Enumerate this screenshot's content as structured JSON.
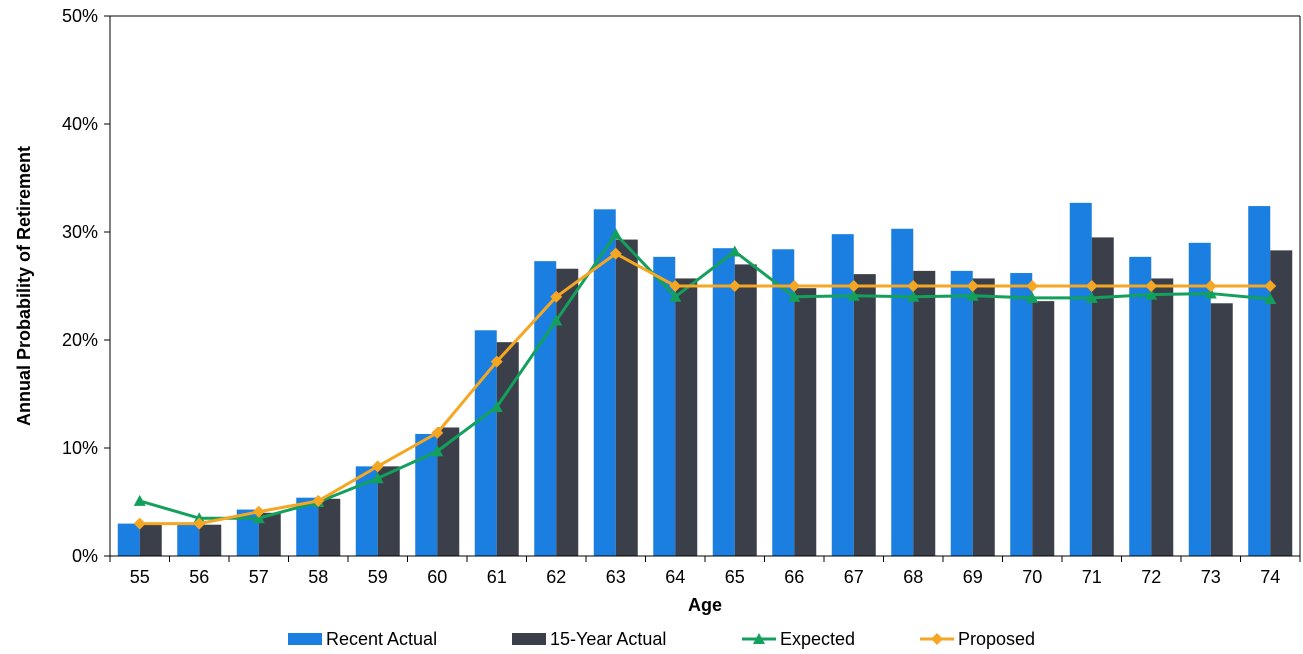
{
  "chart_data": {
    "type": "bar",
    "title": "",
    "xlabel": "Age",
    "ylabel": "Annual Probability of Retirement",
    "ylim": [
      0,
      0.5
    ],
    "yticks": [
      "0%",
      "10%",
      "20%",
      "30%",
      "40%",
      "50%"
    ],
    "categories": [
      "55",
      "56",
      "57",
      "58",
      "59",
      "60",
      "61",
      "62",
      "63",
      "64",
      "65",
      "66",
      "67",
      "68",
      "69",
      "70",
      "71",
      "72",
      "73",
      "74"
    ],
    "grid": false,
    "legend_position": "bottom",
    "series": [
      {
        "name": "Recent Actual",
        "kind": "bar",
        "color": "#1a7fe0",
        "values": [
          0.03,
          0.03,
          0.043,
          0.054,
          0.083,
          0.113,
          0.209,
          0.273,
          0.321,
          0.277,
          0.285,
          0.284,
          0.298,
          0.303,
          0.264,
          0.262,
          0.327,
          0.277,
          0.29,
          0.324
        ]
      },
      {
        "name": "15-Year Actual",
        "kind": "bar",
        "color": "#3b3f4a",
        "values": [
          0.029,
          0.029,
          0.04,
          0.053,
          0.083,
          0.119,
          0.198,
          0.266,
          0.293,
          0.257,
          0.27,
          0.248,
          0.261,
          0.264,
          0.257,
          0.236,
          0.295,
          0.257,
          0.234,
          0.283
        ]
      },
      {
        "name": "Expected",
        "kind": "line",
        "marker": "triangle",
        "color": "#12a05c",
        "values": [
          0.051,
          0.035,
          0.035,
          0.05,
          0.072,
          0.097,
          0.138,
          0.218,
          0.298,
          0.24,
          0.282,
          0.24,
          0.241,
          0.24,
          0.241,
          0.239,
          0.239,
          0.242,
          0.243,
          0.238
        ]
      },
      {
        "name": "Proposed",
        "kind": "line",
        "marker": "diamond",
        "color": "#f5a623",
        "values": [
          0.03,
          0.03,
          0.041,
          0.051,
          0.083,
          0.114,
          0.18,
          0.24,
          0.28,
          0.25,
          0.25,
          0.25,
          0.25,
          0.25,
          0.25,
          0.25,
          0.25,
          0.25,
          0.25,
          0.25
        ]
      }
    ]
  }
}
